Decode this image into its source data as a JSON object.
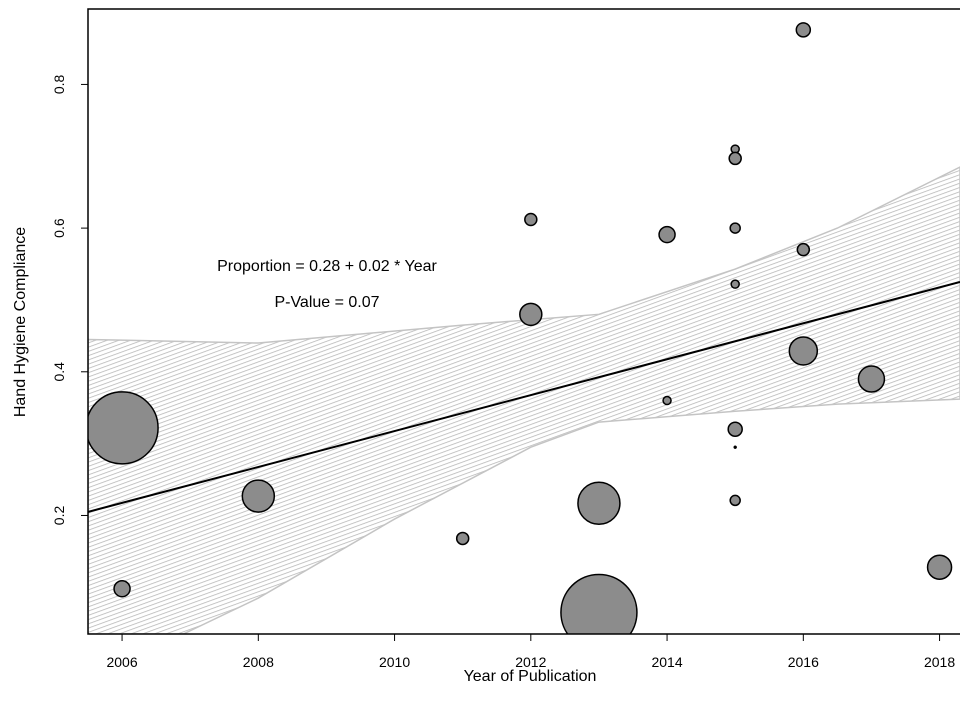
{
  "chart_data": {
    "type": "scatter",
    "xlabel": "Year of Publication",
    "ylabel": "Hand Hygiene Compliance",
    "xlim": [
      2005.5,
      2018.3
    ],
    "ylim": [
      0.035,
      0.905
    ],
    "x_ticks": [
      "2006",
      "2008",
      "2010",
      "2012",
      "2014",
      "2016",
      "2018"
    ],
    "y_ticks": [
      "0.2",
      "0.4",
      "0.6",
      "0.8"
    ],
    "annotations": [
      "Proportion = 0.28 + 0.02 * Year",
      "P-Value = 0.07"
    ],
    "regression": {
      "intercept_at_2005_5": 0.205,
      "slope": 0.025
    },
    "confidence_band": {
      "upper": [
        [
          2005.5,
          0.445
        ],
        [
          2008,
          0.44
        ],
        [
          2011,
          0.465
        ],
        [
          2013,
          0.48
        ],
        [
          2015,
          0.543
        ],
        [
          2016.5,
          0.6
        ],
        [
          2018.3,
          0.685
        ]
      ],
      "lower": [
        [
          2006.9,
          0.035
        ],
        [
          2008,
          0.085
        ],
        [
          2010,
          0.195
        ],
        [
          2012,
          0.295
        ],
        [
          2013,
          0.33
        ],
        [
          2015,
          0.345
        ],
        [
          2016.5,
          0.355
        ],
        [
          2018.3,
          0.362
        ]
      ]
    },
    "points": [
      {
        "x": 2006,
        "y": 0.322,
        "size": 36
      },
      {
        "x": 2006,
        "y": 0.098,
        "size": 8
      },
      {
        "x": 2008,
        "y": 0.227,
        "size": 16
      },
      {
        "x": 2011,
        "y": 0.168,
        "size": 6
      },
      {
        "x": 2012,
        "y": 0.612,
        "size": 6
      },
      {
        "x": 2012,
        "y": 0.48,
        "size": 11
      },
      {
        "x": 2013,
        "y": 0.217,
        "size": 21
      },
      {
        "x": 2013,
        "y": 0.065,
        "size": 38
      },
      {
        "x": 2014,
        "y": 0.591,
        "size": 8
      },
      {
        "x": 2014,
        "y": 0.36,
        "size": 4
      },
      {
        "x": 2015,
        "y": 0.71,
        "size": 4
      },
      {
        "x": 2015,
        "y": 0.697,
        "size": 6
      },
      {
        "x": 2015,
        "y": 0.6,
        "size": 5
      },
      {
        "x": 2015,
        "y": 0.522,
        "size": 4
      },
      {
        "x": 2015,
        "y": 0.32,
        "size": 7
      },
      {
        "x": 2015,
        "y": 0.295,
        "size": 1.5
      },
      {
        "x": 2015,
        "y": 0.221,
        "size": 5
      },
      {
        "x": 2016,
        "y": 0.876,
        "size": 7
      },
      {
        "x": 2016,
        "y": 0.57,
        "size": 6
      },
      {
        "x": 2016,
        "y": 0.429,
        "size": 14
      },
      {
        "x": 2017,
        "y": 0.39,
        "size": 13
      },
      {
        "x": 2018,
        "y": 0.128,
        "size": 12
      }
    ],
    "colors": {
      "point_fill": "#8c8c8c",
      "point_stroke": "#000000",
      "band_fill": "#e3e3e3",
      "band_stroke": "#c4c4c4",
      "line": "#000000"
    },
    "grid": false
  }
}
